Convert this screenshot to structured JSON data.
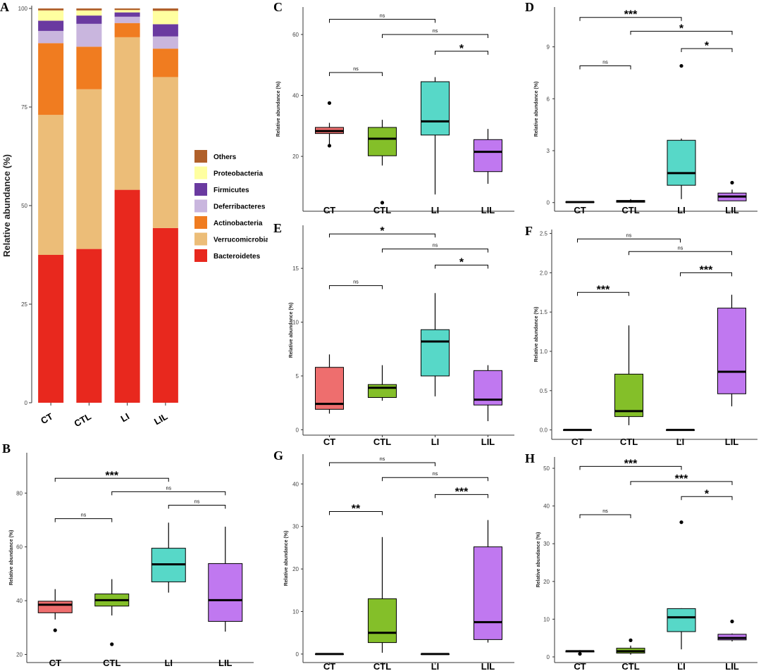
{
  "chart_data": [
    {
      "panel": "A",
      "type": "bar",
      "stacked": true,
      "ylabel": "Relative abundance (%)",
      "ylim": [
        0,
        100
      ],
      "yticks": [
        0,
        25,
        50,
        75,
        100
      ],
      "categories": [
        "CT",
        "CTL",
        "LI",
        "LIL"
      ],
      "series": [
        {
          "name": "Bacteroidetes",
          "color": "#e8281e",
          "values": [
            37.5,
            39,
            54,
            44.3
          ]
        },
        {
          "name": "Verrucomicrobia",
          "color": "#ecbd78",
          "values": [
            35.5,
            40.5,
            38.7,
            38.3
          ]
        },
        {
          "name": "Actinobacteria",
          "color": "#f07c20",
          "values": [
            18.2,
            10.8,
            3.6,
            7.2
          ]
        },
        {
          "name": "Deferribacteres",
          "color": "#c9b6de",
          "values": [
            3.1,
            5.8,
            1.6,
            3.1
          ]
        },
        {
          "name": "Firmicutes",
          "color": "#6a3aa0",
          "values": [
            2.6,
            2.1,
            1.1,
            3.1
          ]
        },
        {
          "name": "Proteobacteria",
          "color": "#ffffa0",
          "values": [
            2.6,
            1.3,
            0.6,
            3.4
          ]
        },
        {
          "name": "Others",
          "color": "#b0602a",
          "values": [
            0.5,
            0.5,
            0.4,
            0.6
          ]
        }
      ],
      "legend_order": [
        "Others",
        "Proteobacteria",
        "Firmicutes",
        "Deferribacteres",
        "Actinobacteria",
        "Verrucomicrobia",
        "Bacteroidetes"
      ]
    },
    {
      "panel": "B",
      "type": "box",
      "ylabel": "Relative abundance (%)",
      "ylim": [
        17,
        95
      ],
      "yticks": [
        20,
        40,
        60,
        80
      ],
      "categories": [
        "CT",
        "CTL",
        "LI",
        "LIL"
      ],
      "colors": [
        "#ee6e6e",
        "#84bf29",
        "#57d8c8",
        "#c078f0"
      ],
      "boxes": [
        {
          "min": 33,
          "q1": 35.5,
          "median": 38.5,
          "q3": 39.8,
          "max": 44.3,
          "outliers": [
            29
          ]
        },
        {
          "min": 34.5,
          "q1": 38,
          "median": 40.2,
          "q3": 42.5,
          "max": 48,
          "outliers": [
            23.8
          ]
        },
        {
          "min": 43,
          "q1": 47,
          "median": 53.5,
          "q3": 59.5,
          "max": 69,
          "outliers": []
        },
        {
          "min": 28.5,
          "q1": 32.3,
          "median": 40.2,
          "q3": 53.8,
          "max": 67.5,
          "outliers": []
        }
      ],
      "comparisons": [
        {
          "from": 0,
          "to": 2,
          "y": 85.5,
          "label": "***"
        },
        {
          "from": 1,
          "to": 3,
          "y": 80.5,
          "label": "ns"
        },
        {
          "from": 2,
          "to": 3,
          "y": 75.5,
          "label": "ns"
        },
        {
          "from": 0,
          "to": 1,
          "y": 70.5,
          "label": "ns"
        }
      ]
    },
    {
      "panel": "C",
      "type": "box",
      "ylabel": "Relative abundance (%)",
      "ylim": [
        2,
        69
      ],
      "yticks": [
        20,
        40,
        60
      ],
      "categories": [
        "CT",
        "CTL",
        "LI",
        "LIL"
      ],
      "colors": [
        "#ee6e6e",
        "#84bf29",
        "#57d8c8",
        "#c078f0"
      ],
      "boxes": [
        {
          "min": 23.5,
          "q1": 27.5,
          "median": 28.3,
          "q3": 29.5,
          "max": 31,
          "outliers": [
            37.5,
            23.5
          ]
        },
        {
          "min": 17,
          "q1": 20.2,
          "median": 25.8,
          "q3": 29.5,
          "max": 32,
          "outliers": [
            4.8
          ]
        },
        {
          "min": 7.5,
          "q1": 27,
          "median": 31.5,
          "q3": 44.5,
          "max": 46,
          "outliers": []
        },
        {
          "min": 11,
          "q1": 15,
          "median": 21.5,
          "q3": 25.5,
          "max": 29,
          "outliers": []
        }
      ],
      "comparisons": [
        {
          "from": 0,
          "to": 2,
          "y": 65,
          "label": "ns"
        },
        {
          "from": 1,
          "to": 3,
          "y": 60,
          "label": "ns"
        },
        {
          "from": 2,
          "to": 3,
          "y": 54.5,
          "label": "*"
        },
        {
          "from": 0,
          "to": 1,
          "y": 47.5,
          "label": "ns"
        }
      ]
    },
    {
      "panel": "D",
      "type": "box",
      "ylabel": "Relative abundance (%)",
      "ylim": [
        -0.5,
        11.3
      ],
      "yticks": [
        0,
        3,
        6,
        9
      ],
      "categories": [
        "CT",
        "CTL",
        "LI",
        "LIL"
      ],
      "colors": [
        "#ee6e6e",
        "#84bf29",
        "#57d8c8",
        "#c078f0"
      ],
      "boxes": [
        {
          "min": 0,
          "q1": 0,
          "median": 0.03,
          "q3": 0.05,
          "max": 0.07,
          "outliers": []
        },
        {
          "min": 0,
          "q1": 0.02,
          "median": 0.08,
          "q3": 0.12,
          "max": 0.2,
          "outliers": []
        },
        {
          "min": 0.2,
          "q1": 1,
          "median": 1.7,
          "q3": 3.6,
          "max": 3.7,
          "outliers": [
            7.9
          ]
        },
        {
          "min": 0.1,
          "q1": 0.1,
          "median": 0.35,
          "q3": 0.55,
          "max": 0.75,
          "outliers": [
            1.15
          ]
        }
      ],
      "comparisons": [
        {
          "from": 0,
          "to": 2,
          "y": 10.7,
          "label": "***"
        },
        {
          "from": 1,
          "to": 3,
          "y": 9.9,
          "label": "*"
        },
        {
          "from": 2,
          "to": 3,
          "y": 8.9,
          "label": "*"
        },
        {
          "from": 0,
          "to": 1,
          "y": 7.9,
          "label": "ns"
        }
      ]
    },
    {
      "panel": "E",
      "type": "box",
      "ylabel": "Relative abundance (%)",
      "ylim": [
        -0.5,
        19
      ],
      "yticks": [
        0,
        5,
        10,
        15
      ],
      "categories": [
        "CT",
        "CTL",
        "LI",
        "LIL"
      ],
      "colors": [
        "#ee6e6e",
        "#84bf29",
        "#57d8c8",
        "#c078f0"
      ],
      "boxes": [
        {
          "min": 1.5,
          "q1": 1.9,
          "median": 2.4,
          "q3": 5.8,
          "max": 7,
          "outliers": []
        },
        {
          "min": 2.7,
          "q1": 3,
          "median": 3.9,
          "q3": 4.2,
          "max": 6,
          "outliers": []
        },
        {
          "min": 3.1,
          "q1": 5,
          "median": 8.2,
          "q3": 9.3,
          "max": 12.7,
          "outliers": []
        },
        {
          "min": 0.8,
          "q1": 2.3,
          "median": 2.8,
          "q3": 5.5,
          "max": 6,
          "outliers": []
        }
      ],
      "comparisons": [
        {
          "from": 0,
          "to": 2,
          "y": 18.2,
          "label": "*"
        },
        {
          "from": 1,
          "to": 3,
          "y": 16.8,
          "label": "ns"
        },
        {
          "from": 2,
          "to": 3,
          "y": 15.3,
          "label": "*"
        },
        {
          "from": 0,
          "to": 1,
          "y": 13.4,
          "label": "ns"
        }
      ]
    },
    {
      "panel": "F",
      "type": "box",
      "ylabel": "Relative abundance (%)",
      "ylim": [
        -0.12,
        2.55
      ],
      "yticks": [
        0.0,
        0.5,
        1.0,
        1.5,
        2.0,
        2.5
      ],
      "categories": [
        "CT",
        "CTL",
        "LI",
        "LIL"
      ],
      "colors": [
        "#ee6e6e",
        "#84bf29",
        "#57d8c8",
        "#c078f0"
      ],
      "boxes": [
        {
          "min": 0,
          "q1": 0,
          "median": 0,
          "q3": 0,
          "max": 0,
          "outliers": []
        },
        {
          "min": 0.06,
          "q1": 0.17,
          "median": 0.24,
          "q3": 0.71,
          "max": 1.33,
          "outliers": []
        },
        {
          "min": 0,
          "q1": 0,
          "median": 0,
          "q3": 0,
          "max": 0,
          "outliers": []
        },
        {
          "min": 0.3,
          "q1": 0.46,
          "median": 0.74,
          "q3": 1.55,
          "max": 1.72,
          "outliers": []
        }
      ],
      "comparisons": [
        {
          "from": 0,
          "to": 2,
          "y": 2.43,
          "label": "ns"
        },
        {
          "from": 1,
          "to": 3,
          "y": 2.27,
          "label": "ns"
        },
        {
          "from": 2,
          "to": 3,
          "y": 2.0,
          "label": "***"
        },
        {
          "from": 0,
          "to": 1,
          "y": 1.75,
          "label": "***"
        }
      ]
    },
    {
      "panel": "G",
      "type": "box",
      "ylabel": "Relative abundance (%)",
      "ylim": [
        -2,
        47
      ],
      "yticks": [
        0,
        10,
        20,
        30,
        40
      ],
      "categories": [
        "CT",
        "CTL",
        "LI",
        "LIL"
      ],
      "colors": [
        "#ee6e6e",
        "#84bf29",
        "#57d8c8",
        "#c078f0"
      ],
      "boxes": [
        {
          "min": 0,
          "q1": 0,
          "median": 0,
          "q3": 0,
          "max": 0,
          "outliers": []
        },
        {
          "min": 0.3,
          "q1": 2.7,
          "median": 5,
          "q3": 13,
          "max": 27.5,
          "outliers": []
        },
        {
          "min": 0,
          "q1": 0,
          "median": 0,
          "q3": 0,
          "max": 0,
          "outliers": []
        },
        {
          "min": 2.7,
          "q1": 3.4,
          "median": 7.5,
          "q3": 25.2,
          "max": 31.5,
          "outliers": []
        }
      ],
      "comparisons": [
        {
          "from": 0,
          "to": 2,
          "y": 45,
          "label": "ns"
        },
        {
          "from": 1,
          "to": 3,
          "y": 41.5,
          "label": "ns"
        },
        {
          "from": 2,
          "to": 3,
          "y": 37.5,
          "label": "***"
        },
        {
          "from": 0,
          "to": 1,
          "y": 33.5,
          "label": "**"
        }
      ]
    },
    {
      "panel": "H",
      "type": "box",
      "ylabel": "Relative abundance (%)",
      "ylim": [
        -1.5,
        53
      ],
      "yticks": [
        0,
        10,
        20,
        30,
        40,
        50
      ],
      "categories": [
        "CT",
        "CTL",
        "LI",
        "LIL"
      ],
      "colors": [
        "#ee6e6e",
        "#84bf29",
        "#57d8c8",
        "#c078f0"
      ],
      "boxes": [
        {
          "min": 0.8,
          "q1": 1.3,
          "median": 1.5,
          "q3": 1.6,
          "max": 1.8,
          "outliers": [
            0.8
          ]
        },
        {
          "min": 0.6,
          "q1": 1,
          "median": 1.5,
          "q3": 2.3,
          "max": 3,
          "outliers": [
            4.4
          ]
        },
        {
          "min": 2,
          "q1": 6.7,
          "median": 10.5,
          "q3": 12.8,
          "max": 12.9,
          "outliers": [
            35.7
          ]
        },
        {
          "min": 4.1,
          "q1": 4.5,
          "median": 5,
          "q3": 6,
          "max": 6.2,
          "outliers": [
            9.4
          ]
        }
      ],
      "comparisons": [
        {
          "from": 0,
          "to": 2,
          "y": 50.5,
          "label": "***"
        },
        {
          "from": 1,
          "to": 3,
          "y": 46.5,
          "label": "***"
        },
        {
          "from": 2,
          "to": 3,
          "y": 42.5,
          "label": "*"
        },
        {
          "from": 0,
          "to": 1,
          "y": 37.7,
          "label": "ns"
        }
      ]
    }
  ]
}
